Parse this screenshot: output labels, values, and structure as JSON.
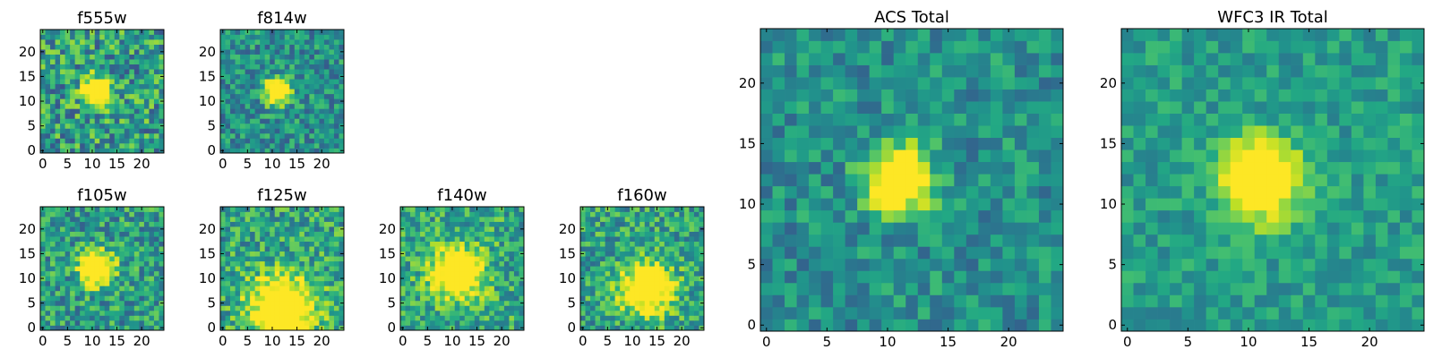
{
  "chart_data": [
    {
      "type": "heatmap",
      "title": "f555w",
      "colormap": "viridis",
      "grid_size": [
        25,
        25
      ],
      "xticks": [
        "0",
        "5",
        "10",
        "15",
        "20"
      ],
      "yticks": [
        "0",
        "5",
        "10",
        "15",
        "20"
      ],
      "xlim": [
        -0.5,
        24.5
      ],
      "ylim": [
        -0.5,
        24.5
      ],
      "source_peak": [
        11,
        12
      ],
      "source_extent_px": 2.0,
      "peak_intensity": 0.95,
      "noise_level": 0.3,
      "background": 0.55,
      "seed": 11
    },
    {
      "type": "heatmap",
      "title": "f814w",
      "colormap": "viridis",
      "grid_size": [
        25,
        25
      ],
      "xticks": [
        "0",
        "5",
        "10",
        "15",
        "20"
      ],
      "yticks": [
        "0",
        "5",
        "10",
        "15",
        "20"
      ],
      "xlim": [
        -0.5,
        24.5
      ],
      "ylim": [
        -0.5,
        24.5
      ],
      "source_peak": [
        11,
        12
      ],
      "source_extent_px": 1.8,
      "peak_intensity": 0.98,
      "noise_level": 0.22,
      "background": 0.5,
      "seed": 23
    },
    {
      "type": "heatmap",
      "title": "f105w",
      "colormap": "viridis",
      "grid_size": [
        25,
        25
      ],
      "xticks": [
        "0",
        "5",
        "10",
        "15",
        "20"
      ],
      "yticks": [
        "0",
        "5",
        "10",
        "15",
        "20"
      ],
      "xlim": [
        -0.5,
        24.5
      ],
      "ylim": [
        -0.5,
        24.5
      ],
      "source_peak": [
        11,
        12
      ],
      "source_extent_px": 2.3,
      "peak_intensity": 0.95,
      "noise_level": 0.25,
      "background": 0.55,
      "seed": 37
    },
    {
      "type": "heatmap",
      "title": "f125w",
      "colormap": "viridis",
      "grid_size": [
        25,
        25
      ],
      "xticks": [
        "0",
        "5",
        "10",
        "15",
        "20"
      ],
      "yticks": [
        "0",
        "5",
        "10",
        "15",
        "20"
      ],
      "xlim": [
        -0.5,
        24.5
      ],
      "ylim": [
        -0.5,
        24.5
      ],
      "source_peak": [
        12,
        4
      ],
      "source_extent_px": 4.5,
      "peak_intensity": 0.88,
      "noise_level": 0.25,
      "background": 0.58,
      "seed": 41
    },
    {
      "type": "heatmap",
      "title": "f140w",
      "colormap": "viridis",
      "grid_size": [
        25,
        25
      ],
      "xticks": [
        "0",
        "5",
        "10",
        "15",
        "20"
      ],
      "yticks": [
        "0",
        "5",
        "10",
        "15",
        "20"
      ],
      "xlim": [
        -0.5,
        24.5
      ],
      "ylim": [
        -0.5,
        24.5
      ],
      "source_peak": [
        11,
        11
      ],
      "source_extent_px": 3.5,
      "peak_intensity": 0.85,
      "noise_level": 0.24,
      "background": 0.6,
      "seed": 53
    },
    {
      "type": "heatmap",
      "title": "f160w",
      "colormap": "viridis",
      "grid_size": [
        25,
        25
      ],
      "xticks": [
        "0",
        "5",
        "10",
        "15",
        "20"
      ],
      "yticks": [
        "0",
        "5",
        "10",
        "15",
        "20"
      ],
      "xlim": [
        -0.5,
        24.5
      ],
      "ylim": [
        -0.5,
        24.5
      ],
      "source_peak": [
        13,
        8
      ],
      "source_extent_px": 3.5,
      "peak_intensity": 0.85,
      "noise_level": 0.24,
      "background": 0.58,
      "seed": 67
    },
    {
      "type": "heatmap",
      "title": "ACS Total",
      "colormap": "viridis",
      "grid_size": [
        25,
        25
      ],
      "xticks": [
        "0",
        "5",
        "10",
        "15",
        "20"
      ],
      "yticks": [
        "0",
        "5",
        "10",
        "15",
        "20"
      ],
      "xlim": [
        -0.5,
        24.5
      ],
      "ylim": [
        -0.5,
        24.5
      ],
      "source_peak": [
        11,
        12
      ],
      "source_extent_px": 1.8,
      "peak_intensity": 1.0,
      "noise_level": 0.18,
      "background": 0.5,
      "seed": 79
    },
    {
      "type": "heatmap",
      "title": "WFC3 IR Total",
      "colormap": "viridis",
      "grid_size": [
        25,
        25
      ],
      "xticks": [
        "0",
        "5",
        "10",
        "15",
        "20"
      ],
      "yticks": [
        "0",
        "5",
        "10",
        "15",
        "20"
      ],
      "xlim": [
        -0.5,
        24.5
      ],
      "ylim": [
        -0.5,
        24.5
      ],
      "source_peak": [
        11,
        12
      ],
      "source_extent_px": 2.2,
      "peak_intensity": 0.95,
      "noise_level": 0.14,
      "background": 0.55,
      "seed": 97
    }
  ]
}
